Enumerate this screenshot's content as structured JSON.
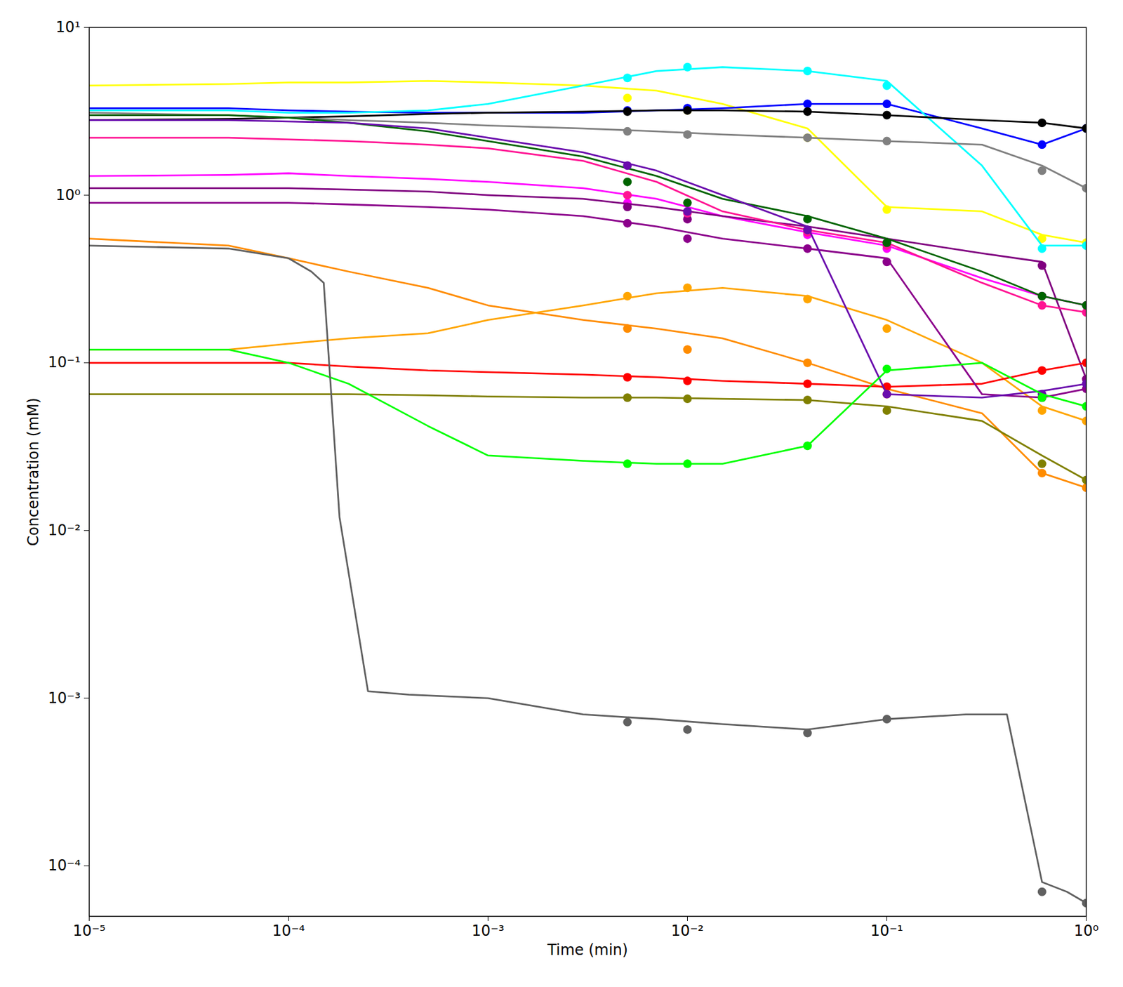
{
  "chart_data": {
    "type": "line",
    "xlabel": "Time (min)",
    "ylabel": "Concentration (mM)",
    "log": true,
    "grid": false,
    "xlim": [
      1e-05,
      1.0
    ],
    "ylim": [
      5e-05,
      10.0
    ],
    "xticks": [
      {
        "value": 1e-05,
        "label": "10⁻⁵"
      },
      {
        "value": 0.0001,
        "label": "10⁻⁴"
      },
      {
        "value": 0.001,
        "label": "10⁻³"
      },
      {
        "value": 0.01,
        "label": "10⁻²"
      },
      {
        "value": 0.1,
        "label": "10⁻¹"
      },
      {
        "value": 1,
        "label": "10⁰"
      }
    ],
    "yticks": [
      {
        "value": 0.0001,
        "label": "10⁻⁴"
      },
      {
        "value": 0.001,
        "label": "10⁻³"
      },
      {
        "value": 0.01,
        "label": "10⁻²"
      },
      {
        "value": 0.1,
        "label": "10⁻¹"
      },
      {
        "value": 1,
        "label": "10⁰"
      },
      {
        "value": 10,
        "label": "10¹"
      }
    ],
    "series": [
      {
        "type": "line",
        "line_style": "solid",
        "color": "#FFFF00",
        "x": [
          1e-05,
          5e-05,
          0.0001,
          0.0002,
          0.0005,
          0.001,
          0.003,
          0.007,
          0.015,
          0.04,
          0.1,
          0.3,
          0.6,
          1.0
        ],
        "values": [
          4.5,
          4.6,
          4.7,
          4.7,
          4.8,
          4.7,
          4.5,
          4.2,
          3.5,
          2.5,
          0.85,
          0.8,
          0.58,
          0.52
        ]
      },
      {
        "type": "scatter",
        "marker": "circle",
        "color": "#FFFF00",
        "x": [
          0.005,
          0.01,
          0.04,
          0.1,
          0.6,
          1.0
        ],
        "values": [
          3.8,
          3.2,
          2.2,
          0.82,
          0.55,
          0.52
        ]
      },
      {
        "type": "line",
        "line_style": "solid",
        "color": "#0000FF",
        "x": [
          1e-05,
          5e-05,
          0.0001,
          0.0002,
          0.0005,
          0.001,
          0.003,
          0.007,
          0.015,
          0.04,
          0.1,
          0.3,
          0.6,
          1.0
        ],
        "values": [
          3.3,
          3.3,
          3.2,
          3.15,
          3.1,
          3.1,
          3.1,
          3.2,
          3.3,
          3.5,
          3.5,
          2.5,
          2.0,
          2.5
        ]
      },
      {
        "type": "scatter",
        "marker": "circle",
        "color": "#0000FF",
        "x": [
          0.005,
          0.01,
          0.04,
          0.1,
          0.6,
          1.0
        ],
        "values": [
          3.2,
          3.3,
          3.5,
          3.5,
          2.0,
          2.5
        ]
      },
      {
        "type": "line",
        "line_style": "solid",
        "color": "#00FFFF",
        "x": [
          1e-05,
          5e-05,
          0.0001,
          0.0002,
          0.0005,
          0.001,
          0.003,
          0.007,
          0.015,
          0.04,
          0.1,
          0.3,
          0.6,
          1.0
        ],
        "values": [
          3.2,
          3.2,
          3.1,
          3.1,
          3.2,
          3.5,
          4.5,
          5.5,
          5.8,
          5.5,
          4.8,
          1.5,
          0.5,
          0.5
        ]
      },
      {
        "type": "scatter",
        "marker": "circle",
        "color": "#00FFFF",
        "x": [
          0.005,
          0.01,
          0.04,
          0.1,
          0.6,
          1.0
        ],
        "values": [
          5.0,
          5.8,
          5.5,
          4.5,
          0.48,
          0.5
        ]
      },
      {
        "type": "line",
        "line_style": "solid",
        "color": "#000000",
        "x": [
          1e-05,
          5e-05,
          0.0001,
          0.0002,
          0.0005,
          0.001,
          0.003,
          0.007,
          0.015,
          0.04,
          0.1,
          0.3,
          0.6,
          1.0
        ],
        "values": [
          2.8,
          2.85,
          2.9,
          2.95,
          3.05,
          3.1,
          3.15,
          3.2,
          3.2,
          3.15,
          3.0,
          2.8,
          2.7,
          2.5
        ]
      },
      {
        "type": "scatter",
        "marker": "circle",
        "color": "#000000",
        "x": [
          0.005,
          0.01,
          0.04,
          0.1,
          0.6,
          1.0
        ],
        "values": [
          3.15,
          3.2,
          3.15,
          3.0,
          2.7,
          2.5
        ]
      },
      {
        "type": "line",
        "line_style": "solid",
        "color": "#FF00FF",
        "x": [
          1e-05,
          5e-05,
          0.0001,
          0.0002,
          0.0005,
          0.001,
          0.003,
          0.007,
          0.015,
          0.04,
          0.1,
          0.3,
          0.6,
          1.0
        ],
        "values": [
          1.3,
          1.32,
          1.35,
          1.3,
          1.25,
          1.2,
          1.1,
          0.95,
          0.75,
          0.6,
          0.5,
          0.32,
          0.25,
          0.22
        ]
      },
      {
        "type": "scatter",
        "marker": "circle",
        "color": "#FF00FF",
        "x": [
          0.005,
          0.01,
          0.04,
          0.1,
          0.6,
          1.0
        ],
        "values": [
          0.9,
          0.72,
          0.58,
          0.48,
          0.25,
          0.22
        ]
      },
      {
        "type": "line",
        "line_style": "solid",
        "color": "#808080",
        "x": [
          1e-05,
          5e-05,
          0.0001,
          0.0002,
          0.0005,
          0.001,
          0.003,
          0.007,
          0.015,
          0.04,
          0.1,
          0.3,
          0.6,
          1.0
        ],
        "values": [
          3.1,
          3.0,
          2.9,
          2.8,
          2.7,
          2.6,
          2.5,
          2.4,
          2.3,
          2.2,
          2.1,
          2.0,
          1.5,
          1.1
        ]
      },
      {
        "type": "scatter",
        "marker": "circle",
        "color": "#808080",
        "x": [
          0.005,
          0.01,
          0.04,
          0.1,
          0.6,
          1.0
        ],
        "values": [
          2.4,
          2.3,
          2.2,
          2.1,
          1.4,
          1.1
        ]
      },
      {
        "type": "line",
        "line_style": "solid",
        "color": "#800080",
        "x": [
          1e-05,
          5e-05,
          0.0001,
          0.0002,
          0.0005,
          0.001,
          0.003,
          0.007,
          0.015,
          0.04,
          0.1,
          0.3,
          0.6,
          1.0
        ],
        "values": [
          1.1,
          1.1,
          1.1,
          1.08,
          1.05,
          1.0,
          0.95,
          0.85,
          0.75,
          0.65,
          0.55,
          0.45,
          0.4,
          0.08
        ]
      },
      {
        "type": "scatter",
        "marker": "circle",
        "color": "#800080",
        "x": [
          0.005,
          0.01,
          0.04,
          0.1,
          0.6,
          1.0
        ],
        "values": [
          0.85,
          0.72,
          0.62,
          0.52,
          0.38,
          0.08
        ]
      },
      {
        "type": "line",
        "line_style": "solid",
        "color": "#FF1493",
        "x": [
          1e-05,
          5e-05,
          0.0001,
          0.0002,
          0.0005,
          0.001,
          0.003,
          0.007,
          0.015,
          0.04,
          0.1,
          0.3,
          0.6,
          1.0
        ],
        "values": [
          2.2,
          2.2,
          2.15,
          2.1,
          2.0,
          1.9,
          1.6,
          1.2,
          0.8,
          0.62,
          0.52,
          0.3,
          0.22,
          0.2
        ]
      },
      {
        "type": "scatter",
        "marker": "circle",
        "color": "#FF1493",
        "x": [
          0.005,
          0.01,
          0.04,
          0.1,
          0.6,
          1.0
        ],
        "values": [
          1.0,
          0.78,
          0.6,
          0.5,
          0.22,
          0.2
        ]
      },
      {
        "type": "line",
        "line_style": "solid",
        "color": "#FF8C00",
        "x": [
          1e-05,
          5e-05,
          0.0001,
          0.0002,
          0.0005,
          0.001,
          0.003,
          0.007,
          0.015,
          0.04,
          0.1,
          0.3,
          0.6,
          1.0
        ],
        "values": [
          0.55,
          0.5,
          0.42,
          0.35,
          0.28,
          0.22,
          0.18,
          0.16,
          0.14,
          0.1,
          0.07,
          0.05,
          0.022,
          0.018
        ]
      },
      {
        "type": "scatter",
        "marker": "circle",
        "color": "#FF8C00",
        "x": [
          0.005,
          0.01,
          0.04,
          0.1,
          0.6,
          1.0
        ],
        "values": [
          0.16,
          0.12,
          0.1,
          0.065,
          0.022,
          0.018
        ]
      },
      {
        "type": "line",
        "line_style": "solid",
        "color": "#FFA500",
        "x": [
          1e-05,
          5e-05,
          0.0001,
          0.0002,
          0.0005,
          0.001,
          0.003,
          0.007,
          0.015,
          0.04,
          0.1,
          0.3,
          0.6,
          1.0
        ],
        "values": [
          0.12,
          0.12,
          0.13,
          0.14,
          0.15,
          0.18,
          0.22,
          0.26,
          0.28,
          0.25,
          0.18,
          0.1,
          0.055,
          0.045
        ]
      },
      {
        "type": "scatter",
        "marker": "circle",
        "color": "#FFA500",
        "x": [
          0.005,
          0.01,
          0.04,
          0.1,
          0.6,
          1.0
        ],
        "values": [
          0.25,
          0.28,
          0.24,
          0.16,
          0.052,
          0.045
        ]
      },
      {
        "type": "line",
        "line_style": "solid",
        "color": "#FF0000",
        "x": [
          1e-05,
          5e-05,
          0.0001,
          0.0002,
          0.0005,
          0.001,
          0.003,
          0.007,
          0.015,
          0.04,
          0.1,
          0.3,
          0.6,
          1.0
        ],
        "values": [
          0.1,
          0.1,
          0.1,
          0.095,
          0.09,
          0.088,
          0.085,
          0.082,
          0.078,
          0.075,
          0.072,
          0.075,
          0.09,
          0.1
        ]
      },
      {
        "type": "scatter",
        "marker": "circle",
        "color": "#FF0000",
        "x": [
          0.005,
          0.01,
          0.04,
          0.1,
          0.6,
          1.0
        ],
        "values": [
          0.082,
          0.078,
          0.075,
          0.072,
          0.09,
          0.1
        ]
      },
      {
        "type": "line",
        "line_style": "solid",
        "color": "#006400",
        "x": [
          1e-05,
          5e-05,
          0.0001,
          0.0002,
          0.0005,
          0.001,
          0.003,
          0.007,
          0.015,
          0.04,
          0.1,
          0.3,
          0.6,
          1.0
        ],
        "values": [
          3.0,
          3.0,
          2.9,
          2.7,
          2.4,
          2.1,
          1.7,
          1.3,
          0.95,
          0.75,
          0.55,
          0.35,
          0.25,
          0.22
        ]
      },
      {
        "type": "scatter",
        "marker": "circle",
        "color": "#006400",
        "x": [
          0.005,
          0.01,
          0.04,
          0.1,
          0.6,
          1.0
        ],
        "values": [
          1.2,
          0.9,
          0.72,
          0.52,
          0.25,
          0.22
        ]
      },
      {
        "type": "line",
        "line_style": "solid",
        "color": "#808000",
        "x": [
          1e-05,
          5e-05,
          0.0001,
          0.0002,
          0.0005,
          0.001,
          0.003,
          0.007,
          0.015,
          0.04,
          0.1,
          0.3,
          0.6,
          1.0
        ],
        "values": [
          0.065,
          0.065,
          0.065,
          0.065,
          0.064,
          0.063,
          0.062,
          0.062,
          0.061,
          0.06,
          0.055,
          0.045,
          0.028,
          0.02
        ]
      },
      {
        "type": "scatter",
        "marker": "circle",
        "color": "#808000",
        "x": [
          0.005,
          0.01,
          0.04,
          0.1,
          0.6,
          1.0
        ],
        "values": [
          0.062,
          0.061,
          0.06,
          0.052,
          0.025,
          0.02
        ]
      },
      {
        "type": "line",
        "line_style": "solid",
        "color": "#8B008B",
        "x": [
          1e-05,
          5e-05,
          0.0001,
          0.0002,
          0.0005,
          0.001,
          0.003,
          0.007,
          0.015,
          0.04,
          0.1,
          0.3,
          0.6,
          1.0
        ],
        "values": [
          0.9,
          0.9,
          0.9,
          0.88,
          0.85,
          0.82,
          0.75,
          0.65,
          0.55,
          0.48,
          0.42,
          0.065,
          0.062,
          0.07
        ]
      },
      {
        "type": "scatter",
        "marker": "circle",
        "color": "#8B008B",
        "x": [
          0.005,
          0.01,
          0.04,
          0.1,
          0.6,
          1.0
        ],
        "values": [
          0.68,
          0.55,
          0.48,
          0.4,
          0.062,
          0.07
        ]
      },
      {
        "type": "line",
        "line_style": "solid",
        "color": "#6A0DAD",
        "x": [
          1e-05,
          5e-05,
          0.0001,
          0.0002,
          0.0005,
          0.001,
          0.003,
          0.007,
          0.015,
          0.04,
          0.1,
          0.3,
          0.6,
          1.0
        ],
        "values": [
          2.8,
          2.8,
          2.75,
          2.7,
          2.5,
          2.2,
          1.8,
          1.4,
          1.0,
          0.65,
          0.065,
          0.062,
          0.068,
          0.075
        ]
      },
      {
        "type": "scatter",
        "marker": "circle",
        "color": "#6A0DAD",
        "x": [
          0.005,
          0.01,
          0.04,
          0.1,
          0.6,
          1.0
        ],
        "values": [
          1.5,
          0.8,
          0.62,
          0.065,
          0.065,
          0.075
        ]
      },
      {
        "type": "line",
        "line_style": "solid",
        "color": "#00FF00",
        "x": [
          1e-05,
          5e-05,
          0.0001,
          0.0002,
          0.0005,
          0.001,
          0.003,
          0.007,
          0.015,
          0.04,
          0.1,
          0.3,
          0.6,
          1.0
        ],
        "values": [
          0.12,
          0.12,
          0.1,
          0.075,
          0.042,
          0.028,
          0.026,
          0.025,
          0.025,
          0.032,
          0.09,
          0.1,
          0.065,
          0.055
        ]
      },
      {
        "type": "scatter",
        "marker": "circle",
        "color": "#00FF00",
        "x": [
          0.005,
          0.01,
          0.04,
          0.1,
          0.6,
          1.0
        ],
        "values": [
          0.025,
          0.025,
          0.032,
          0.092,
          0.062,
          0.055
        ]
      },
      {
        "type": "line",
        "line_style": "solid",
        "color": "#606060",
        "x": [
          1e-05,
          5e-05,
          0.0001,
          0.00013,
          0.00015,
          0.00018,
          0.00025,
          0.0004,
          0.001,
          0.003,
          0.007,
          0.015,
          0.04,
          0.1,
          0.25,
          0.4,
          0.6,
          0.8,
          1.0
        ],
        "values": [
          0.5,
          0.48,
          0.42,
          0.35,
          0.3,
          0.012,
          0.0011,
          0.00105,
          0.001,
          0.0008,
          0.00075,
          0.0007,
          0.00065,
          0.00075,
          0.0008,
          0.0008,
          8e-05,
          7e-05,
          6e-05
        ]
      },
      {
        "type": "scatter",
        "marker": "circle",
        "color": "#606060",
        "x": [
          0.005,
          0.01,
          0.04,
          0.1,
          0.6,
          1.0
        ],
        "values": [
          0.00072,
          0.00065,
          0.00062,
          0.00075,
          7e-05,
          6e-05
        ]
      }
    ]
  }
}
